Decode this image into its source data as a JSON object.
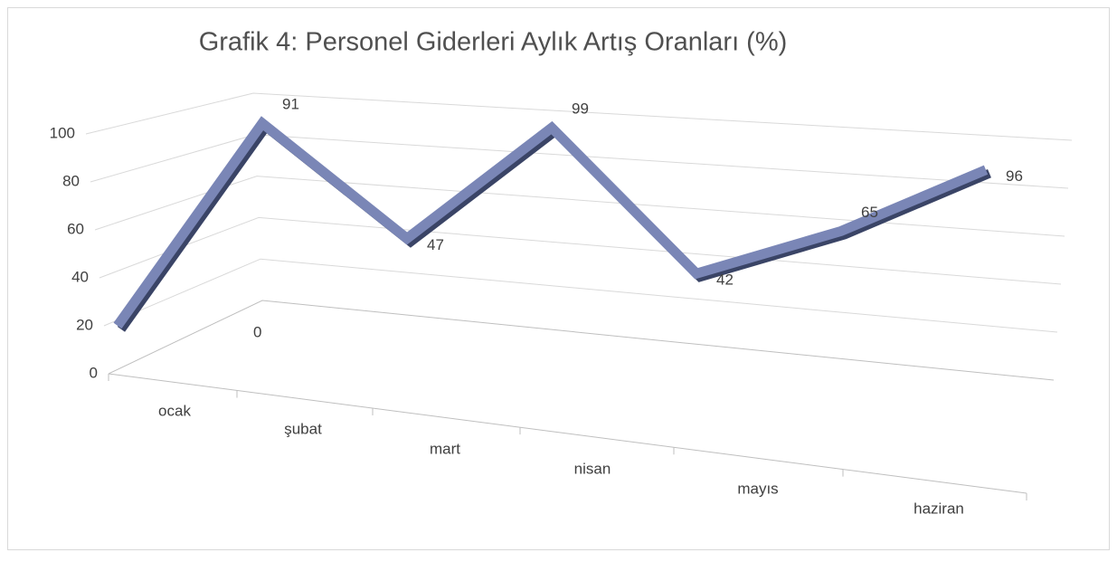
{
  "chart_data": {
    "type": "line3d",
    "title": "Grafik 4: Personel Giderleri Aylık Artış Oranları (%)",
    "categories": [
      "ocak",
      "şubat",
      "mart",
      "nisan",
      "mayıs",
      "haziran",
      null
    ],
    "series": [
      {
        "name": null,
        "color": "#7a86b6",
        "values": [
          0,
          91,
          47,
          99,
          42,
          65,
          96
        ]
      }
    ],
    "ylim": [
      0,
      100
    ],
    "yticks": [
      0,
      20,
      40,
      60,
      80,
      100
    ],
    "grid": true
  }
}
